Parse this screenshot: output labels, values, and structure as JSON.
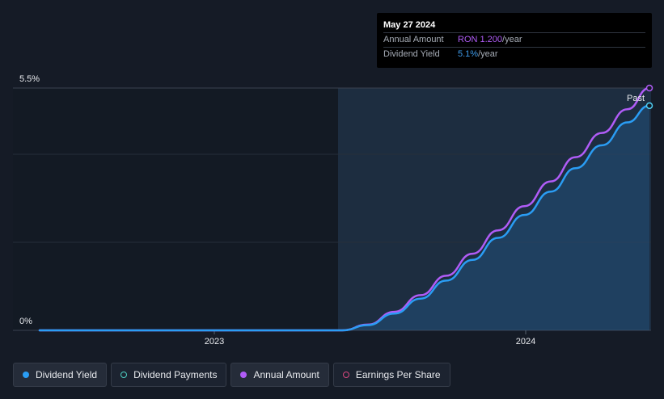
{
  "tooltip": {
    "date": "May 27 2024",
    "rows": [
      {
        "label": "Annual Amount",
        "value": "RON 1.200",
        "unit": "/year",
        "color": "#b05cf7"
      },
      {
        "label": "Dividend Yield",
        "value": "5.1%",
        "unit": "/year",
        "color": "#3d9bea"
      }
    ]
  },
  "legend": [
    {
      "label": "Dividend Yield",
      "icon": "filled-dot-icon",
      "color": "#2a9df4"
    },
    {
      "label": "Dividend Payments",
      "icon": "ring-dot-icon",
      "color": "#4fd1c5"
    },
    {
      "label": "Annual Amount",
      "icon": "filled-dot-icon",
      "color": "#b05cf7"
    },
    {
      "label": "Earnings Per Share",
      "icon": "ring-dot-icon",
      "color": "#d6477e"
    }
  ],
  "chart_data": {
    "type": "line",
    "y_tick_labels": [
      "5.5%",
      "0%"
    ],
    "x_tick_labels": [
      "2023",
      "2024"
    ],
    "past_label": "Past",
    "ylim": [
      0,
      5.5
    ],
    "grid": true,
    "series": [
      {
        "name": "Dividend Yield",
        "color": "#2a9df4",
        "x": [
          "2022-06-10",
          "2023-06-01",
          "2023-07-01",
          "2023-08-01",
          "2023-09-01",
          "2023-10-01",
          "2023-11-01",
          "2023-12-01",
          "2024-01-01",
          "2024-02-01",
          "2024-03-01",
          "2024-04-01",
          "2024-05-01",
          "2024-05-27"
        ],
        "values": [
          0,
          0,
          0.12,
          0.38,
          0.72,
          1.13,
          1.6,
          2.1,
          2.62,
          3.15,
          3.68,
          4.2,
          4.72,
          5.1
        ]
      },
      {
        "name": "Annual Amount",
        "color": "#b05cf7",
        "x": [
          "2022-06-10",
          "2023-06-01",
          "2023-07-01",
          "2023-08-01",
          "2023-09-01",
          "2023-10-01",
          "2023-11-01",
          "2023-12-01",
          "2024-01-01",
          "2024-02-01",
          "2024-03-01",
          "2024-04-01",
          "2024-05-01",
          "2024-05-27"
        ],
        "values": [
          0,
          0,
          0.13,
          0.42,
          0.8,
          1.24,
          1.74,
          2.27,
          2.82,
          3.38,
          3.93,
          4.48,
          5.02,
          5.5
        ]
      }
    ]
  }
}
